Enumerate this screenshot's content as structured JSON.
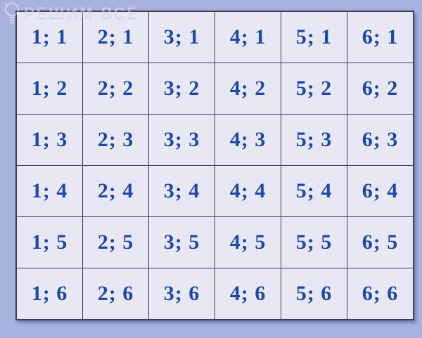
{
  "watermark": {
    "icon": "lightbulb-icon",
    "text": "РЕШИМ ВСЁ"
  },
  "colors": {
    "page_background": "#a8b2de",
    "cell_background": "#e8e8f4",
    "grid_border": "#3d3d55",
    "cell_text": "#1d47ab",
    "watermark_text": "rgba(255,255,255,0.38)"
  },
  "chart_data": {
    "type": "table",
    "rows": [
      [
        "1; 1",
        "2; 1",
        "3; 1",
        "4; 1",
        "5; 1",
        "6; 1"
      ],
      [
        "1; 2",
        "2; 2",
        "3; 2",
        "4; 2",
        "5; 2",
        "6; 2"
      ],
      [
        "1; 3",
        "2; 3",
        "3; 3",
        "4; 3",
        "5; 3",
        "6; 3"
      ],
      [
        "1; 4",
        "2; 4",
        "3; 4",
        "4; 4",
        "5; 4",
        "6; 4"
      ],
      [
        "1; 5",
        "2; 5",
        "3; 5",
        "4; 5",
        "5; 5",
        "6; 5"
      ],
      [
        "1; 6",
        "2; 6",
        "3; 6",
        "4; 6",
        "5; 6",
        "6; 6"
      ]
    ],
    "layout": {
      "grid": "6x6",
      "grid_lines": true,
      "cell_text_format": "column; row"
    }
  }
}
